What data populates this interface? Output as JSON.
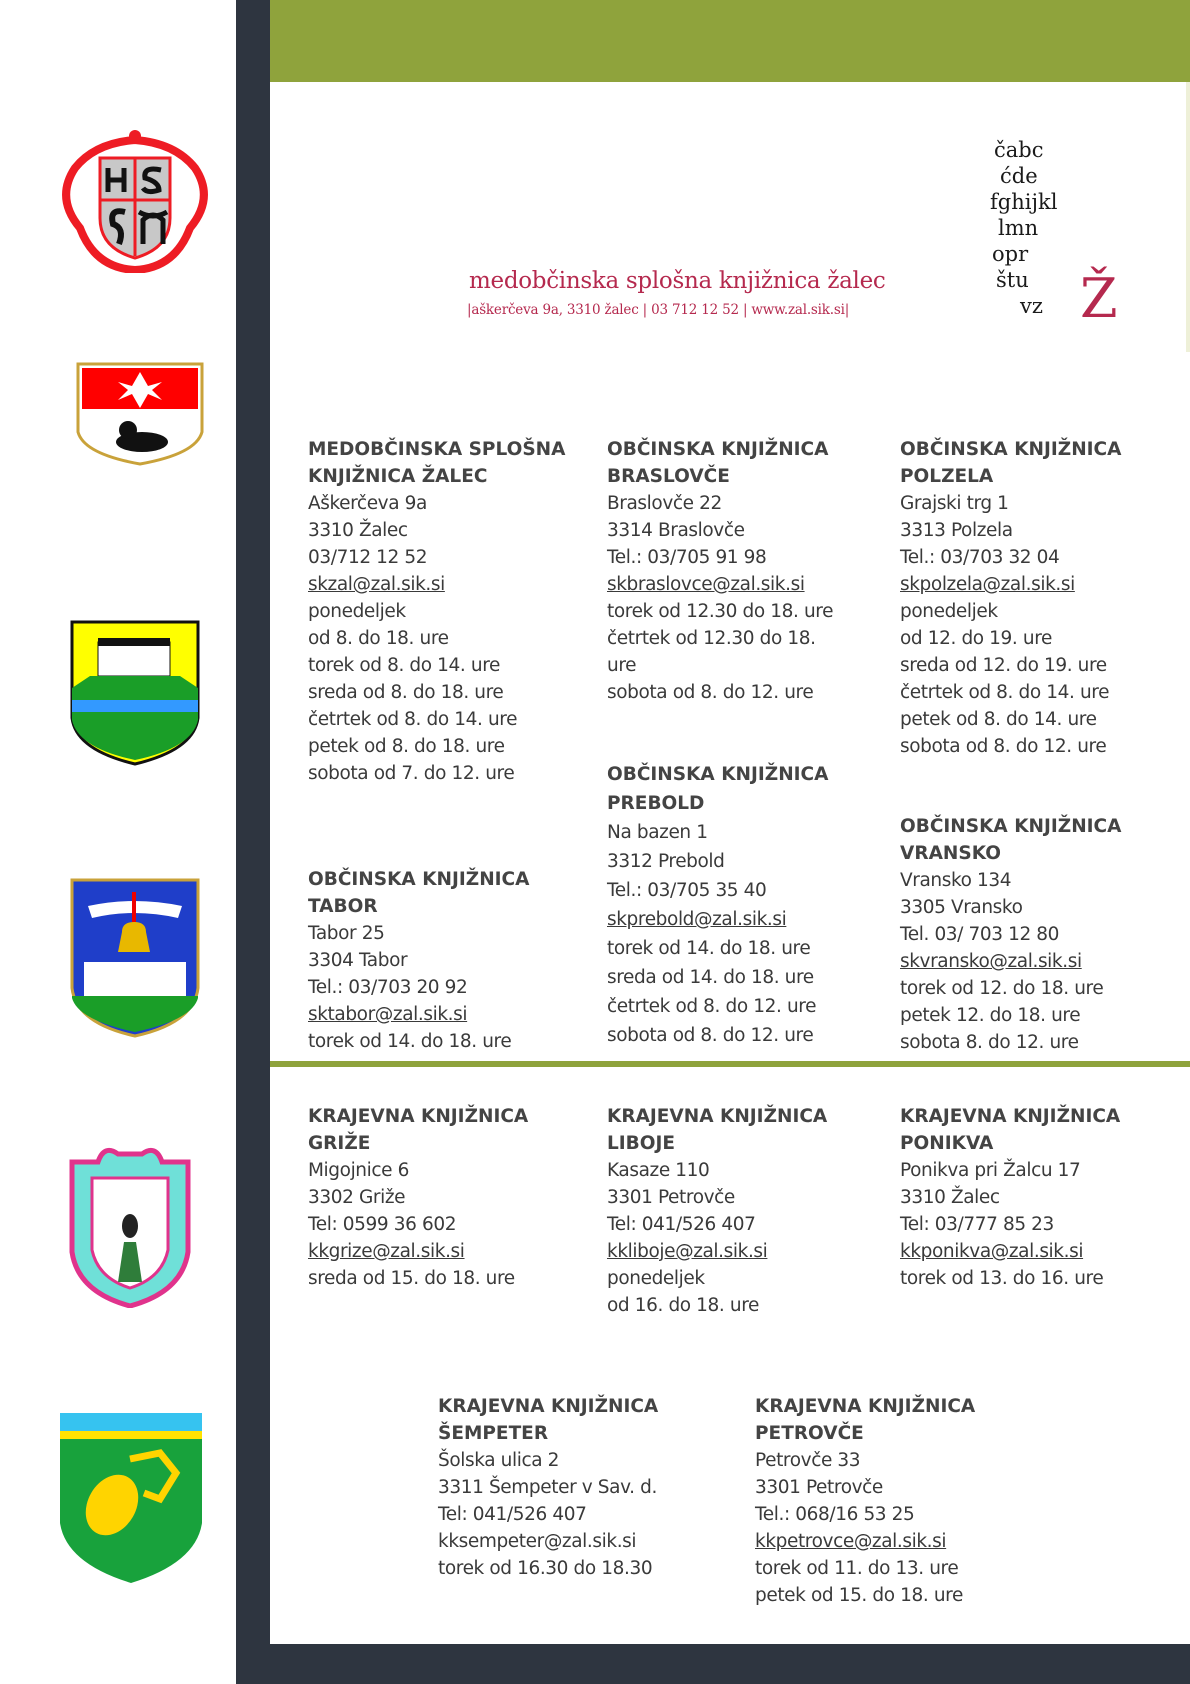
{
  "header": {
    "title": "medobčinska splošna knjižnica žalec",
    "subtitle": "|aškerčeva 9a, 3310 žalec | 03 712 12 52 | www.zal.sik.si|",
    "logo_letters": "čabc ćde fghijkl lmn oprž štu vz"
  },
  "colors": {
    "accent_green": "#8fa33c",
    "dark": "#2e3540",
    "brand_red": "#b5294e"
  },
  "crests": [
    "zalec-crest-icon",
    "braslovce-crest-icon",
    "polzela-crest-icon",
    "prebold-crest-icon",
    "grize-crest-icon",
    "vransko-crest-icon"
  ],
  "libraries": [
    {
      "h1": "MEDOBČINSKA SPLOŠNA",
      "h2": "KNJIŽNICA ŽALEC",
      "lines": [
        "Aškerčeva 9a",
        "3310 Žalec",
        "03/712 12 52"
      ],
      "email": "skzal@zal.sik.si",
      "hours": [
        "ponedeljek",
        "od 8. do 18. ure",
        "torek od 8. do 14. ure",
        "sreda od 8. do 18. ure",
        "četrtek od 8. do 14. ure",
        "petek od 8. do 18. ure",
        "sobota od 7. do 12. ure"
      ]
    },
    {
      "h1": "OBČINSKA KNJIŽNICA",
      "h2": "BRASLOVČE",
      "lines": [
        "Braslovče 22",
        "3314 Braslovče",
        "Tel.: 03/705 91 98"
      ],
      "email": "skbraslovce@zal.sik.si",
      "hours": [
        "torek od 12.30 do 18. ure",
        "četrtek od 12.30 do 18.",
        "ure",
        "sobota od 8. do 12. ure"
      ]
    },
    {
      "h1": "OBČINSKA KNJIŽNICA",
      "h2": "POLZELA",
      "lines": [
        "Grajski trg 1",
        "3313 Polzela",
        "Tel.: 03/703 32 04"
      ],
      "email": "skpolzela@zal.sik.si",
      "hours": [
        "ponedeljek",
        "od 12. do 19. ure",
        "sreda od 12. do 19. ure",
        "četrtek od 8. do 14. ure",
        "petek od 8. do 14. ure",
        "sobota od 8. do 12. ure"
      ]
    },
    {
      "h1": "OBČINSKA KNJIŽNICA",
      "h2": "TABOR",
      "lines": [
        "Tabor 25",
        "3304 Tabor",
        "Tel.: 03/703 20 92"
      ],
      "email": "sktabor@zal.sik.si",
      "hours": [
        "torek od 14. do 18. ure"
      ]
    },
    {
      "h1": "OBČINSKA KNJIŽNICA",
      "h2": "PREBOLD",
      "lines": [
        "Na bazen 1",
        "3312 Prebold",
        "Tel.: 03/705 35 40"
      ],
      "email": "skprebold@zal.sik.si",
      "hours": [
        "torek od 14. do 18. ure",
        "sreda od 14. do 18. ure",
        "četrtek od 8. do 12. ure",
        "sobota od 8. do 12. ure"
      ]
    },
    {
      "h1": "OBČINSKA KNJIŽNICA",
      "h2": "VRANSKO",
      "lines": [
        "Vransko 134",
        "3305 Vransko",
        "Tel. 03/ 703 12 80"
      ],
      "email": "skvransko@zal.sik.si",
      "hours": [
        "torek od 12. do 18. ure",
        "petek 12. do 18. ure",
        "sobota 8. do 12. ure"
      ]
    },
    {
      "h1": "KRAJEVNA KNJIŽNICA",
      "h2": "GRIŽE",
      "lines": [
        "Migojnice 6",
        "3302 Griže",
        "Tel: 0599 36 602"
      ],
      "email": "kkgrize@zal.sik.si",
      "hours": [
        "sreda od 15. do 18. ure"
      ]
    },
    {
      "h1": "KRAJEVNA KNJIŽNICA",
      "h2": "LIBOJE",
      "lines": [
        "Kasaze 110",
        "3301 Petrovče",
        "Tel: 041/526 407"
      ],
      "email": "kkliboje@zal.sik.si",
      "hours": [
        "ponedeljek",
        "od 16. do 18. ure"
      ]
    },
    {
      "h1": "KRAJEVNA KNJIŽNICA",
      "h2": "PONIKVA",
      "lines": [
        "Ponikva pri Žalcu 17",
        "3310 Žalec",
        "Tel: 03/777 85 23"
      ],
      "email": "kkponikva@zal.sik.si",
      "hours": [
        "torek od 13. do 16. ure"
      ]
    },
    {
      "h1": "KRAJEVNA KNJIŽNICA",
      "h2": "ŠEMPETER",
      "lines": [
        "Šolska ulica 2",
        "3311 Šempeter v Sav. d.",
        "Tel: 041/526 407"
      ],
      "email": "kksempeter@zal.sik.si",
      "email_plain": true,
      "hours": [
        "torek od 16.30 do 18.30"
      ]
    },
    {
      "h1": "KRAJEVNA KNJIŽNICA",
      "h2": "PETROVČE",
      "lines": [
        "Petrovče 33",
        "3301 Petrovče",
        "Tel.: 068/16 53 25"
      ],
      "email": "kkpetrovce@zal.sik.si",
      "hours": [
        "torek od 11. do 13. ure",
        "petek od 15. do 18. ure"
      ]
    }
  ]
}
